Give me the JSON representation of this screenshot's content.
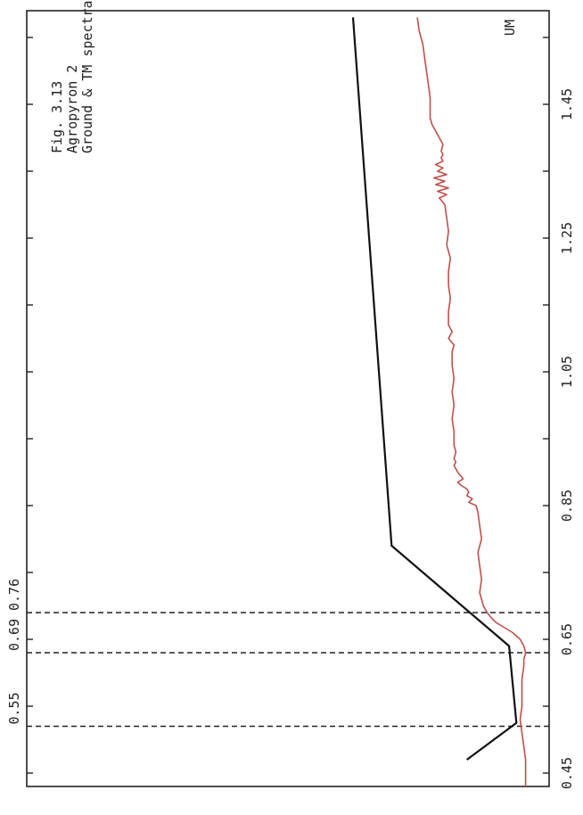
{
  "chart_data": {
    "type": "line",
    "title_lines": [
      "Fig. 3.13",
      "Agropyron 2",
      "Ground & TM spectra"
    ],
    "unit_label": "UM",
    "xlim": [
      0.43,
      1.59
    ],
    "ylim": [
      0,
      1
    ],
    "x_ticks": [
      {
        "value": 0.45,
        "label": "0.45"
      },
      {
        "value": 0.55,
        "label": ""
      },
      {
        "value": 0.65,
        "label": "0.65"
      },
      {
        "value": 0.75,
        "label": ""
      },
      {
        "value": 0.85,
        "label": "0.85"
      },
      {
        "value": 0.95,
        "label": ""
      },
      {
        "value": 1.05,
        "label": "1.05"
      },
      {
        "value": 1.15,
        "label": ""
      },
      {
        "value": 1.25,
        "label": "1.25"
      },
      {
        "value": 1.35,
        "label": ""
      },
      {
        "value": 1.45,
        "label": "1.45"
      },
      {
        "value": 1.55,
        "label": ""
      }
    ],
    "band_markers": [
      {
        "x": 0.52,
        "label": "0.55"
      },
      {
        "x": 0.63,
        "label": "0.69"
      },
      {
        "x": 0.69,
        "label": "0.76"
      }
    ],
    "series": [
      {
        "color": "#111111",
        "x": [
          0.47,
          0.525,
          0.64,
          0.79,
          1.58
        ],
        "y": [
          0.38,
          0.11,
          0.15,
          0.79,
          1.0
        ]
      },
      {
        "color": "#c0504d",
        "x": [
          0.43,
          0.45,
          0.47,
          0.49,
          0.51,
          0.53,
          0.55,
          0.57,
          0.59,
          0.61,
          0.62,
          0.63,
          0.64,
          0.65,
          0.66,
          0.67,
          0.675,
          0.68,
          0.69,
          0.7,
          0.71,
          0.72,
          0.74,
          0.76,
          0.78,
          0.8,
          0.82,
          0.84,
          0.85,
          0.855,
          0.86,
          0.865,
          0.87,
          0.875,
          0.88,
          0.885,
          0.89,
          0.9,
          0.91,
          0.915,
          0.92,
          0.93,
          0.94,
          0.96,
          0.98,
          1.0,
          1.02,
          1.04,
          1.06,
          1.08,
          1.09,
          1.1,
          1.11,
          1.12,
          1.14,
          1.16,
          1.18,
          1.2,
          1.22,
          1.24,
          1.26,
          1.28,
          1.3,
          1.31,
          1.315,
          1.32,
          1.325,
          1.33,
          1.335,
          1.34,
          1.345,
          1.35,
          1.355,
          1.36,
          1.365,
          1.37,
          1.375,
          1.38,
          1.39,
          1.4,
          1.41,
          1.42,
          1.43,
          1.44,
          1.46,
          1.48,
          1.5,
          1.52,
          1.54,
          1.56,
          1.58
        ],
        "y": [
          0.06,
          0.06,
          0.06,
          0.07,
          0.08,
          0.09,
          0.08,
          0.08,
          0.08,
          0.07,
          0.07,
          0.06,
          0.07,
          0.09,
          0.13,
          0.19,
          0.22,
          0.24,
          0.27,
          0.29,
          0.3,
          0.31,
          0.3,
          0.31,
          0.32,
          0.3,
          0.31,
          0.32,
          0.33,
          0.37,
          0.35,
          0.38,
          0.37,
          0.38,
          0.41,
          0.43,
          0.4,
          0.43,
          0.45,
          0.44,
          0.45,
          0.44,
          0.45,
          0.45,
          0.46,
          0.45,
          0.46,
          0.45,
          0.46,
          0.46,
          0.45,
          0.48,
          0.46,
          0.48,
          0.48,
          0.47,
          0.48,
          0.48,
          0.47,
          0.49,
          0.48,
          0.49,
          0.5,
          0.53,
          0.49,
          0.54,
          0.48,
          0.55,
          0.5,
          0.56,
          0.49,
          0.54,
          0.51,
          0.55,
          0.51,
          0.52,
          0.51,
          0.52,
          0.51,
          0.53,
          0.55,
          0.57,
          0.58,
          0.58,
          0.58,
          0.59,
          0.6,
          0.61,
          0.62,
          0.64,
          0.65
        ]
      }
    ]
  }
}
